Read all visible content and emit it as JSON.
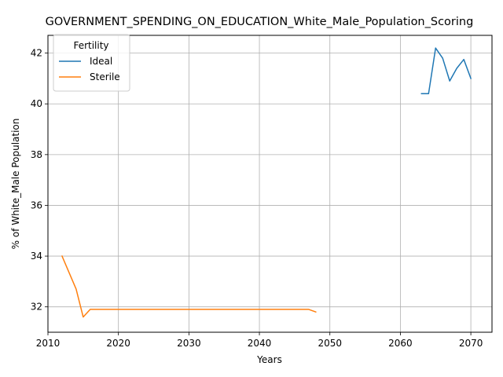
{
  "chart_data": {
    "type": "line",
    "title": "GOVERNMENT_SPENDING_ON_EDUCATION_White_Male_Population_Scoring",
    "xlabel": "Years",
    "ylabel": "% of White_Male Population",
    "xlim": [
      2010,
      2073
    ],
    "ylim": [
      31.0,
      42.7
    ],
    "xticks": [
      2010,
      2020,
      2030,
      2040,
      2050,
      2060,
      2070
    ],
    "yticks": [
      32,
      34,
      36,
      38,
      40,
      42
    ],
    "grid": true,
    "legend": {
      "title": "Fertility",
      "placement": "top-left"
    },
    "series": [
      {
        "name": "Ideal",
        "color": "#1f77b4",
        "x": [
          2063,
          2064,
          2065,
          2066,
          2067,
          2068,
          2069,
          2070
        ],
        "y": [
          40.4,
          40.4,
          42.2,
          41.8,
          40.9,
          41.4,
          41.75,
          41.0
        ]
      },
      {
        "name": "Sterile",
        "color": "#ff7f0e",
        "x": [
          2012,
          2013,
          2014,
          2015,
          2016,
          2017,
          2018,
          2019,
          2020,
          2021,
          2022,
          2023,
          2024,
          2025,
          2026,
          2027,
          2028,
          2029,
          2030,
          2031,
          2032,
          2033,
          2034,
          2035,
          2036,
          2037,
          2038,
          2039,
          2040,
          2041,
          2042,
          2043,
          2044,
          2045,
          2046,
          2047,
          2048
        ],
        "y": [
          34.0,
          33.35,
          32.7,
          31.6,
          31.9,
          31.9,
          31.9,
          31.9,
          31.9,
          31.9,
          31.9,
          31.9,
          31.9,
          31.9,
          31.9,
          31.9,
          31.9,
          31.9,
          31.9,
          31.9,
          31.9,
          31.9,
          31.9,
          31.9,
          31.9,
          31.9,
          31.9,
          31.9,
          31.9,
          31.9,
          31.9,
          31.9,
          31.9,
          31.9,
          31.9,
          31.9,
          31.8
        ]
      }
    ]
  }
}
